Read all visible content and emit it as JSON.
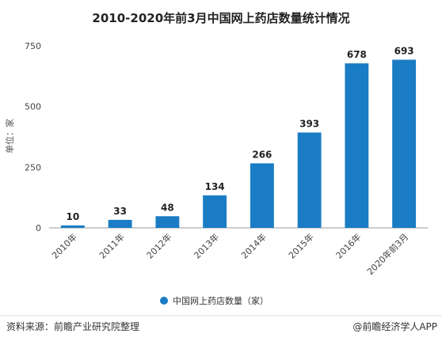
{
  "chart_data": {
    "type": "bar",
    "title": "2010-2020年前3月中国网上药店数量统计情况",
    "ylabel": "单位：家",
    "xlabel": "",
    "categories": [
      "2010年",
      "2011年",
      "2012年",
      "2013年",
      "2014年",
      "2015年",
      "2016年",
      "2020年前3月"
    ],
    "series": [
      {
        "name": "中国网上药店数量（家）",
        "values": [
          10,
          33,
          48,
          134,
          266,
          393,
          678,
          693
        ]
      }
    ],
    "ylim": [
      0,
      750
    ],
    "yticks": [
      0,
      250,
      500,
      750
    ],
    "grid": false,
    "legend_position": "bottom",
    "bar_color": "#1a7cc4"
  },
  "footer": {
    "source": "资料来源：前瞻产业研究院整理",
    "credit": "@前瞻经济学人APP"
  }
}
